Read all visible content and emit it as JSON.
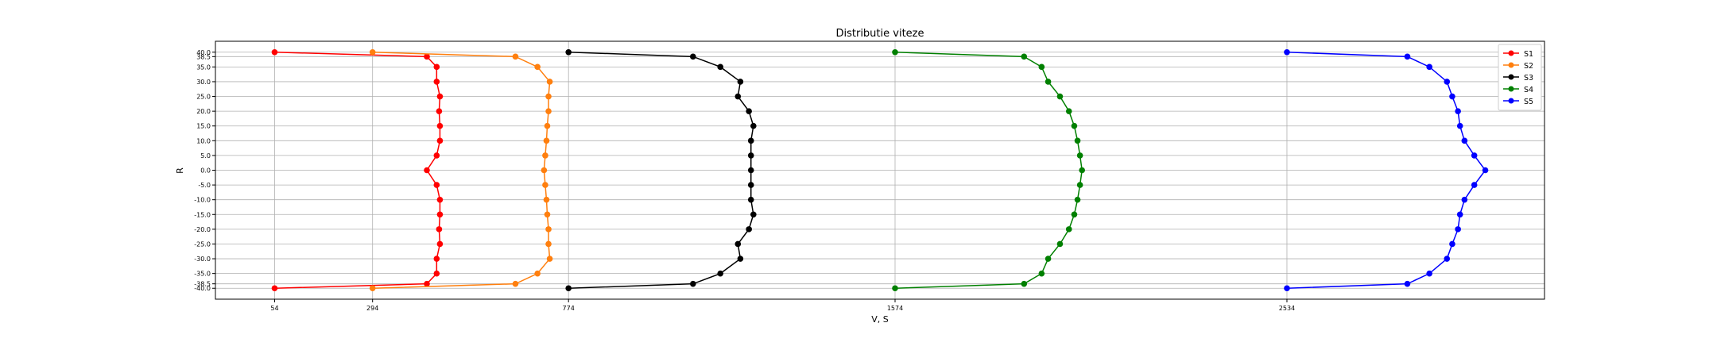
{
  "chart_data": {
    "type": "line",
    "title": "Distributie viteze",
    "x_label": "V, S",
    "y_label": "R",
    "y": [
      40,
      38.5,
      35,
      30,
      25,
      20,
      15,
      10,
      5,
      0,
      -5,
      -10,
      -15,
      -20,
      -25,
      -30,
      -35,
      -38.5,
      -40
    ],
    "series": [
      {
        "name": "S1",
        "color": "#ff0000",
        "x": [
          54,
          427,
          451,
          451,
          459,
          457,
          459,
          459,
          451,
          427,
          451,
          459,
          459,
          457,
          459,
          451,
          451,
          427,
          54
        ]
      },
      {
        "name": "S2",
        "color": "#ff7f0e",
        "x": [
          294,
          644,
          698,
          728,
          725,
          725,
          722,
          720,
          717,
          714,
          717,
          720,
          722,
          725,
          725,
          728,
          698,
          644,
          294
        ]
      },
      {
        "name": "S3",
        "color": "#000000",
        "x": [
          774,
          1079,
          1146,
          1195,
          1189,
          1216,
          1227,
          1221,
          1221,
          1221,
          1221,
          1221,
          1227,
          1216,
          1189,
          1195,
          1146,
          1079,
          774
        ]
      },
      {
        "name": "S4",
        "color": "#008000",
        "x": [
          1574,
          1890,
          1933,
          1949,
          1978,
          2000,
          2013,
          2021,
          2027,
          2032,
          2027,
          2021,
          2013,
          2000,
          1978,
          1949,
          1933,
          1890,
          1574
        ]
      },
      {
        "name": "S5",
        "color": "#0000ff",
        "x": [
          2534,
          2829,
          2883,
          2926,
          2939,
          2953,
          2958,
          2969,
          2993,
          3020,
          2993,
          2969,
          2958,
          2953,
          2939,
          2926,
          2883,
          2829,
          2534
        ]
      }
    ],
    "xlim": [
      -91,
      3165
    ],
    "ylim": [
      -43.7,
      43.7
    ],
    "xticks": [
      54,
      294,
      774,
      1574,
      2534
    ],
    "yticks": [
      {
        "value": 40,
        "label": "40.0"
      },
      {
        "value": 38.5,
        "label": "38.5"
      },
      {
        "value": 35,
        "label": "35.0"
      },
      {
        "value": 30,
        "label": "30.0"
      },
      {
        "value": 25,
        "label": "25.0"
      },
      {
        "value": 20,
        "label": "20.0"
      },
      {
        "value": 15,
        "label": "15.0"
      },
      {
        "value": 10,
        "label": "10.0"
      },
      {
        "value": 5,
        "label": "5.0"
      },
      {
        "value": 0,
        "label": "0.0"
      },
      {
        "value": -5,
        "label": "-5.0"
      },
      {
        "value": -10,
        "label": "-10.0"
      },
      {
        "value": -15,
        "label": "-15.0"
      },
      {
        "value": -20,
        "label": "-20.0"
      },
      {
        "value": -25,
        "label": "-25.0"
      },
      {
        "value": -30,
        "label": "-30.0"
      },
      {
        "value": -35,
        "label": "-35.0"
      },
      {
        "value": -38.5,
        "label": "-38.5"
      },
      {
        "value": -40,
        "label": "-40.0"
      }
    ],
    "grid": true,
    "legend": "upper right"
  }
}
